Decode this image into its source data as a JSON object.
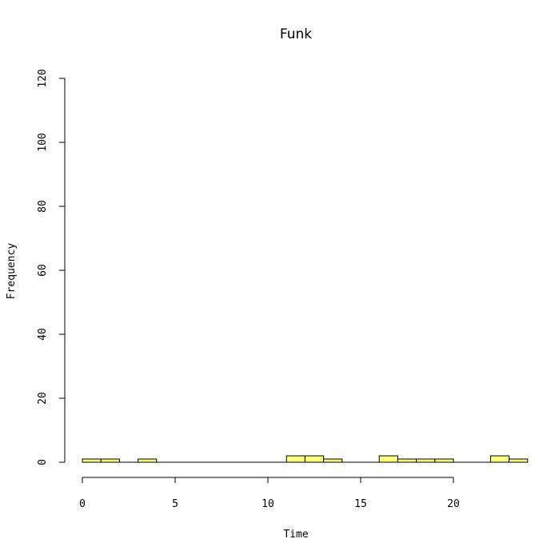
{
  "chart_data": {
    "type": "bar",
    "title": "Funk",
    "xlabel": "Time",
    "ylabel": "Frequency",
    "bar_color": "#ffff80",
    "xlim": [
      0,
      24
    ],
    "ylim": [
      0,
      120
    ],
    "x_ticks": [
      0,
      5,
      10,
      15,
      20
    ],
    "y_ticks": [
      0,
      20,
      40,
      60,
      80,
      100,
      120
    ],
    "bins": [
      {
        "start": 0,
        "end": 1,
        "count": 1
      },
      {
        "start": 1,
        "end": 2,
        "count": 1
      },
      {
        "start": 2,
        "end": 3,
        "count": 0
      },
      {
        "start": 3,
        "end": 4,
        "count": 1
      },
      {
        "start": 4,
        "end": 5,
        "count": 0
      },
      {
        "start": 5,
        "end": 6,
        "count": 0
      },
      {
        "start": 6,
        "end": 7,
        "count": 0
      },
      {
        "start": 7,
        "end": 8,
        "count": 0
      },
      {
        "start": 8,
        "end": 9,
        "count": 0
      },
      {
        "start": 9,
        "end": 10,
        "count": 0
      },
      {
        "start": 10,
        "end": 11,
        "count": 0
      },
      {
        "start": 11,
        "end": 12,
        "count": 2
      },
      {
        "start": 12,
        "end": 13,
        "count": 2
      },
      {
        "start": 13,
        "end": 14,
        "count": 1
      },
      {
        "start": 14,
        "end": 15,
        "count": 0
      },
      {
        "start": 15,
        "end": 16,
        "count": 0
      },
      {
        "start": 16,
        "end": 17,
        "count": 2
      },
      {
        "start": 17,
        "end": 18,
        "count": 1
      },
      {
        "start": 18,
        "end": 19,
        "count": 1
      },
      {
        "start": 19,
        "end": 20,
        "count": 1
      },
      {
        "start": 20,
        "end": 21,
        "count": 0
      },
      {
        "start": 21,
        "end": 22,
        "count": 0
      },
      {
        "start": 22,
        "end": 23,
        "count": 2
      },
      {
        "start": 23,
        "end": 24,
        "count": 1
      }
    ]
  }
}
